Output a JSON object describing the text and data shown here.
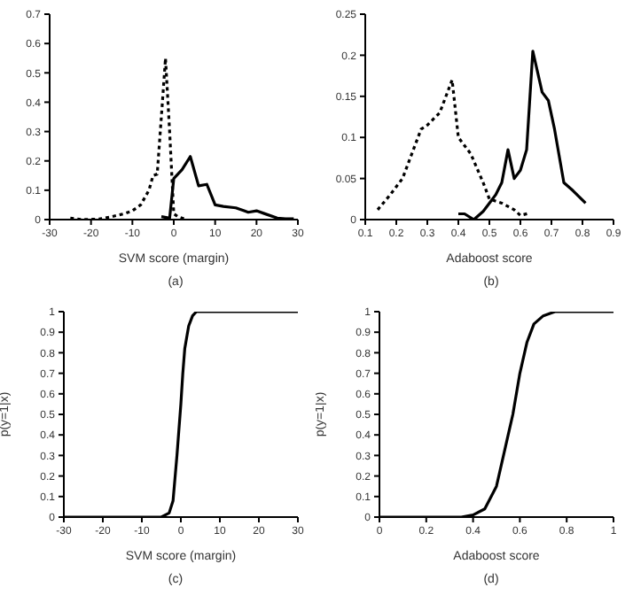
{
  "chart_data": [
    {
      "type": "line",
      "xlabel": "SVM score (margin)",
      "annotations": [
        "(a)"
      ],
      "xlim": [
        -30,
        30
      ],
      "xticks": [
        -30,
        -20,
        -10,
        0,
        10,
        20,
        30
      ],
      "ylim": [
        0,
        0.7
      ],
      "yticks": [
        0,
        0.1,
        0.2,
        0.3,
        0.4,
        0.5,
        0.6,
        0.7
      ],
      "series": [
        {
          "color": "#000000",
          "line_style": "dotted",
          "x": [
            -25,
            -22,
            -18,
            -15,
            -12,
            -10,
            -8,
            -6,
            -5,
            -4,
            -3,
            -2,
            -1,
            0,
            1,
            3
          ],
          "values": [
            0.005,
            0,
            0.002,
            0.01,
            0.02,
            0.03,
            0.05,
            0.1,
            0.15,
            0.155,
            0.35,
            0.55,
            0.3,
            0.02,
            0.01,
            0
          ]
        },
        {
          "color": "#000000",
          "line_style": "solid",
          "x": [
            -3,
            -1,
            0,
            2,
            4,
            6,
            8,
            10,
            12,
            15,
            17,
            18,
            20,
            22,
            25,
            27,
            29
          ],
          "values": [
            0.01,
            0.005,
            0.14,
            0.17,
            0.215,
            0.115,
            0.12,
            0.05,
            0.045,
            0.04,
            0.03,
            0.025,
            0.03,
            0.02,
            0.005,
            0.003,
            0.003
          ]
        }
      ]
    },
    {
      "type": "line",
      "xlabel": "Adaboost score",
      "annotations": [
        "(b)"
      ],
      "xlim": [
        0.1,
        0.9
      ],
      "xticks": [
        0.1,
        0.2,
        0.3,
        0.4,
        0.5,
        0.6,
        0.7,
        0.8,
        0.9
      ],
      "ylim": [
        0,
        0.25
      ],
      "yticks": [
        0,
        0.05,
        0.1,
        0.15,
        0.2,
        0.25
      ],
      "series": [
        {
          "color": "#000000",
          "line_style": "dotted",
          "x": [
            0.14,
            0.18,
            0.22,
            0.26,
            0.28,
            0.3,
            0.34,
            0.38,
            0.4,
            0.42,
            0.44,
            0.48,
            0.5,
            0.54,
            0.58,
            0.6,
            0.63
          ],
          "values": [
            0.012,
            0.03,
            0.05,
            0.09,
            0.11,
            0.115,
            0.13,
            0.17,
            0.1,
            0.09,
            0.08,
            0.045,
            0.025,
            0.02,
            0.012,
            0.005,
            0.008
          ]
        },
        {
          "color": "#000000",
          "line_style": "solid",
          "x": [
            0.4,
            0.42,
            0.45,
            0.48,
            0.5,
            0.52,
            0.54,
            0.56,
            0.58,
            0.6,
            0.62,
            0.64,
            0.67,
            0.69,
            0.71,
            0.74,
            0.77,
            0.81
          ],
          "values": [
            0.007,
            0.007,
            0,
            0.01,
            0.02,
            0.03,
            0.045,
            0.085,
            0.05,
            0.06,
            0.085,
            0.205,
            0.155,
            0.145,
            0.11,
            0.045,
            0.035,
            0.02
          ]
        }
      ]
    },
    {
      "type": "line",
      "xlabel": "SVM score (margin)",
      "ylabel": "p(y=1|x)",
      "annotations": [
        "(c)"
      ],
      "xlim": [
        -30,
        30
      ],
      "xticks": [
        -30,
        -20,
        -10,
        0,
        10,
        20,
        30
      ],
      "ylim": [
        0,
        1
      ],
      "yticks": [
        0,
        0.1,
        0.2,
        0.3,
        0.4,
        0.5,
        0.6,
        0.7,
        0.8,
        0.9,
        1
      ],
      "series": [
        {
          "color": "#000000",
          "line_style": "solid",
          "x": [
            -30,
            -5,
            -4,
            -3,
            -2,
            -1,
            0,
            0.5,
            1,
            2,
            3,
            4,
            5,
            30
          ],
          "values": [
            0,
            0,
            0.01,
            0.02,
            0.08,
            0.3,
            0.55,
            0.7,
            0.82,
            0.93,
            0.98,
            1,
            1,
            1
          ]
        }
      ]
    },
    {
      "type": "line",
      "xlabel": "Adaboost score",
      "ylabel": "p(y=1|x)",
      "annotations": [
        "(d)"
      ],
      "xlim": [
        0,
        1
      ],
      "xticks": [
        0,
        0.2,
        0.4,
        0.6,
        0.8,
        1
      ],
      "ylim": [
        0,
        1
      ],
      "yticks": [
        0,
        0.1,
        0.2,
        0.3,
        0.4,
        0.5,
        0.6,
        0.7,
        0.8,
        0.9,
        1
      ],
      "series": [
        {
          "color": "#000000",
          "line_style": "solid",
          "x": [
            0,
            0.35,
            0.4,
            0.45,
            0.5,
            0.55,
            0.57,
            0.6,
            0.63,
            0.66,
            0.7,
            0.75,
            0.8,
            1
          ],
          "values": [
            0,
            0,
            0.01,
            0.04,
            0.15,
            0.4,
            0.5,
            0.7,
            0.85,
            0.94,
            0.98,
            1,
            1,
            1
          ]
        }
      ]
    }
  ]
}
